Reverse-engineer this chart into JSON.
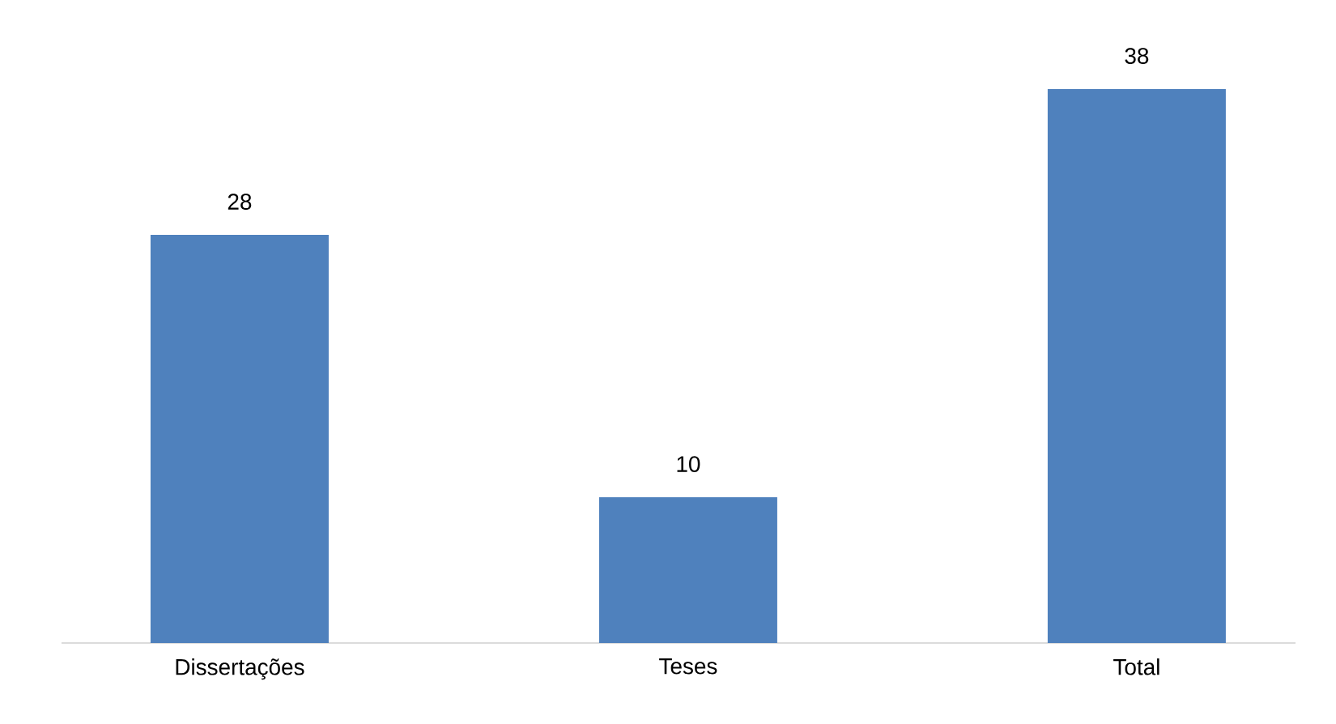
{
  "chart_data": {
    "type": "bar",
    "categories": [
      "Dissertações",
      "Teses",
      "Total"
    ],
    "values": [
      28,
      10,
      38
    ],
    "color": "#4f81bd",
    "data_labels": true
  }
}
